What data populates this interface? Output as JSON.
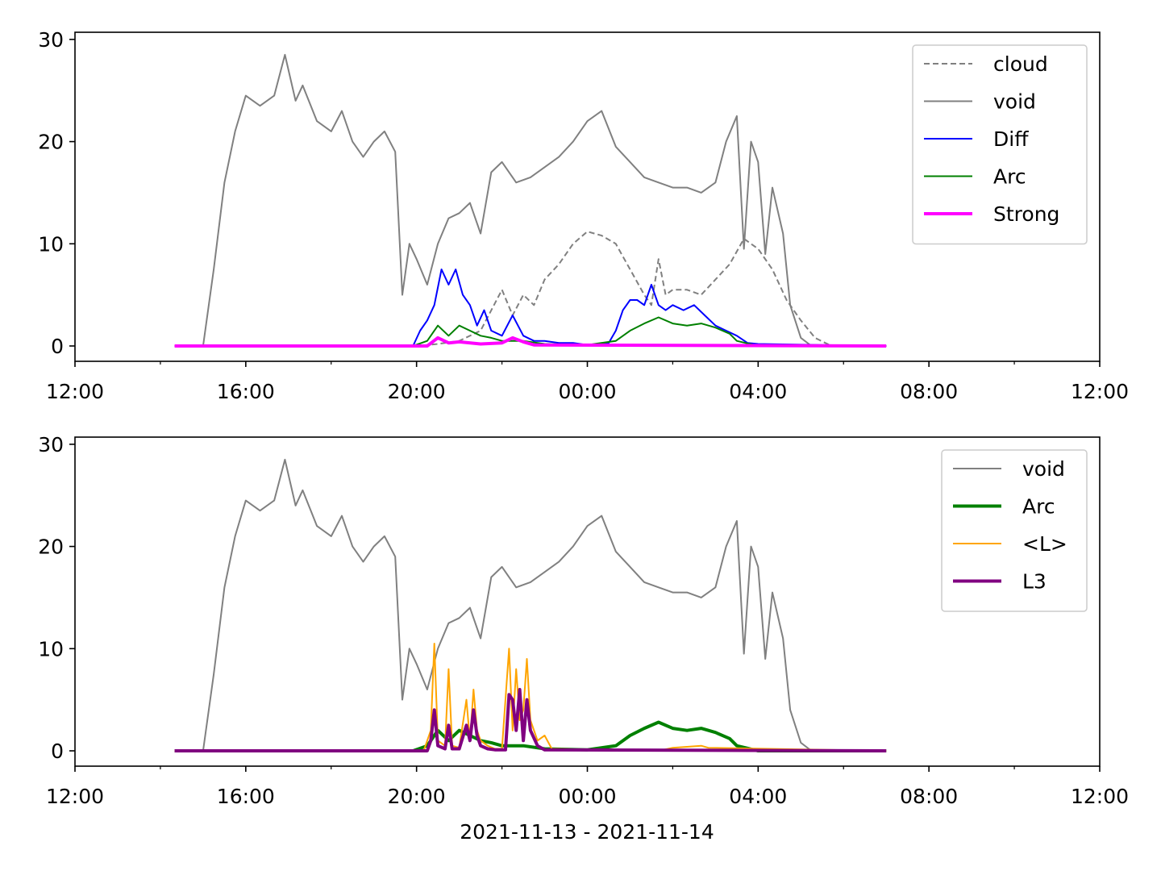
{
  "figure": {
    "xlabel": "2021-11-13 - 2021-11-14"
  },
  "chart_data": [
    {
      "type": "line",
      "ylim": [
        -1.5,
        30.7
      ],
      "xlim": [
        "2021-11-13 12:00",
        "2021-11-14 12:00"
      ],
      "yticks": [
        0,
        10,
        20,
        30
      ],
      "xticks": [
        "12:00",
        "16:00",
        "20:00",
        "00:00",
        "04:00",
        "08:00",
        "12:00"
      ],
      "legend_position": "top-right",
      "grid": false,
      "series": [
        {
          "name": "cloud",
          "color": "#808080",
          "style": "dashed",
          "x": [
            "2021-11-13 14:20",
            "2021-11-13 19:30",
            "2021-11-13 20:00",
            "2021-11-13 20:30",
            "2021-11-13 21:00",
            "2021-11-13 21:30",
            "2021-11-13 22:00",
            "2021-11-13 22:15",
            "2021-11-13 22:30",
            "2021-11-13 22:45",
            "2021-11-13 23:00",
            "2021-11-13 23:20",
            "2021-11-13 23:40",
            "2021-11-14 00:00",
            "2021-11-14 00:20",
            "2021-11-14 00:40",
            "2021-11-14 01:00",
            "2021-11-14 01:20",
            "2021-11-14 01:30",
            "2021-11-14 01:40",
            "2021-11-14 01:50",
            "2021-11-14 02:00",
            "2021-11-14 02:20",
            "2021-11-14 02:40",
            "2021-11-14 03:00",
            "2021-11-14 03:20",
            "2021-11-14 03:40",
            "2021-11-14 04:00",
            "2021-11-14 04:20",
            "2021-11-14 04:40",
            "2021-11-14 05:00",
            "2021-11-14 05:20",
            "2021-11-14 05:40",
            "2021-11-14 06:00",
            "2021-11-14 07:00"
          ],
          "values": [
            0,
            0,
            0,
            0.2,
            0.5,
            1.5,
            5.5,
            3.0,
            5.0,
            4.0,
            6.5,
            8.0,
            10.0,
            11.2,
            10.8,
            10.0,
            7.5,
            5.0,
            4.0,
            8.5,
            5.0,
            5.5,
            5.5,
            5.0,
            6.5,
            8.0,
            10.5,
            9.5,
            7.5,
            4.5,
            2.5,
            0.8,
            0.1,
            0,
            0
          ]
        },
        {
          "name": "void",
          "color": "#808080",
          "style": "solid",
          "x": [
            "2021-11-13 14:20",
            "2021-11-13 15:00",
            "2021-11-13 15:15",
            "2021-11-13 15:30",
            "2021-11-13 15:45",
            "2021-11-13 16:00",
            "2021-11-13 16:20",
            "2021-11-13 16:40",
            "2021-11-13 16:55",
            "2021-11-13 17:10",
            "2021-11-13 17:20",
            "2021-11-13 17:40",
            "2021-11-13 18:00",
            "2021-11-13 18:15",
            "2021-11-13 18:30",
            "2021-11-13 18:45",
            "2021-11-13 19:00",
            "2021-11-13 19:15",
            "2021-11-13 19:30",
            "2021-11-13 19:40",
            "2021-11-13 19:50",
            "2021-11-13 20:00",
            "2021-11-13 20:15",
            "2021-11-13 20:30",
            "2021-11-13 20:45",
            "2021-11-13 21:00",
            "2021-11-13 21:15",
            "2021-11-13 21:30",
            "2021-11-13 21:45",
            "2021-11-13 22:00",
            "2021-11-13 22:20",
            "2021-11-13 22:40",
            "2021-11-13 23:00",
            "2021-11-13 23:20",
            "2021-11-13 23:40",
            "2021-11-14 00:00",
            "2021-11-14 00:20",
            "2021-11-14 00:40",
            "2021-11-14 01:00",
            "2021-11-14 01:20",
            "2021-11-14 01:40",
            "2021-11-14 02:00",
            "2021-11-14 02:20",
            "2021-11-14 02:40",
            "2021-11-14 03:00",
            "2021-11-14 03:15",
            "2021-11-14 03:30",
            "2021-11-14 03:40",
            "2021-11-14 03:50",
            "2021-11-14 04:00",
            "2021-11-14 04:10",
            "2021-11-14 04:20",
            "2021-11-14 04:35",
            "2021-11-14 04:45",
            "2021-11-14 05:00",
            "2021-11-14 05:15",
            "2021-11-14 05:30",
            "2021-11-14 05:45",
            "2021-11-14 06:00",
            "2021-11-14 07:00"
          ],
          "values": [
            0,
            0,
            7.5,
            16,
            21,
            24.5,
            23.5,
            24.5,
            28.5,
            24,
            25.5,
            22,
            21,
            23,
            20,
            18.5,
            20,
            21,
            19,
            5,
            10,
            8.5,
            6,
            10,
            12.5,
            13,
            14,
            11,
            17,
            18,
            16,
            16.5,
            17.5,
            18.5,
            20,
            22,
            23,
            19.5,
            18,
            16.5,
            16,
            15.5,
            15.5,
            15,
            16,
            20,
            22.5,
            9.5,
            20,
            18,
            9,
            15.5,
            11,
            4,
            0.8,
            0,
            0,
            0,
            0,
            0
          ]
        },
        {
          "name": "Diff",
          "color": "#0000ff",
          "style": "solid",
          "x": [
            "2021-11-13 14:20",
            "2021-11-13 19:55",
            "2021-11-13 20:05",
            "2021-11-13 20:15",
            "2021-11-13 20:25",
            "2021-11-13 20:35",
            "2021-11-13 20:45",
            "2021-11-13 20:55",
            "2021-11-13 21:05",
            "2021-11-13 21:15",
            "2021-11-13 21:25",
            "2021-11-13 21:35",
            "2021-11-13 21:45",
            "2021-11-13 22:00",
            "2021-11-13 22:15",
            "2021-11-13 22:30",
            "2021-11-13 22:45",
            "2021-11-13 23:00",
            "2021-11-13 23:20",
            "2021-11-13 23:40",
            "2021-11-14 00:00",
            "2021-11-14 00:30",
            "2021-11-14 00:40",
            "2021-11-14 00:50",
            "2021-11-14 01:00",
            "2021-11-14 01:10",
            "2021-11-14 01:20",
            "2021-11-14 01:30",
            "2021-11-14 01:40",
            "2021-11-14 01:50",
            "2021-11-14 02:00",
            "2021-11-14 02:15",
            "2021-11-14 02:30",
            "2021-11-14 02:45",
            "2021-11-14 03:00",
            "2021-11-14 03:15",
            "2021-11-14 03:30",
            "2021-11-14 03:45",
            "2021-11-14 04:00",
            "2021-11-14 07:00"
          ],
          "values": [
            0,
            0,
            1.5,
            2.5,
            4,
            7.5,
            6,
            7.5,
            5,
            4,
            2,
            3.5,
            1.5,
            1,
            3,
            1,
            0.5,
            0.5,
            0.3,
            0.3,
            0.1,
            0.3,
            1.5,
            3.5,
            4.5,
            4.5,
            4,
            6,
            4,
            3.5,
            4,
            3.5,
            4,
            3,
            2,
            1.5,
            1,
            0.3,
            0.2,
            0
          ]
        },
        {
          "name": "Arc",
          "color": "#008000",
          "style": "solid",
          "x": [
            "2021-11-13 14:20",
            "2021-11-13 19:55",
            "2021-11-13 20:15",
            "2021-11-13 20:30",
            "2021-11-13 20:45",
            "2021-11-13 21:00",
            "2021-11-13 21:15",
            "2021-11-13 21:30",
            "2021-11-13 21:45",
            "2021-11-13 22:00",
            "2021-11-13 22:30",
            "2021-11-13 23:00",
            "2021-11-14 00:00",
            "2021-11-14 00:40",
            "2021-11-14 01:00",
            "2021-11-14 01:20",
            "2021-11-14 01:40",
            "2021-11-14 02:00",
            "2021-11-14 02:20",
            "2021-11-14 02:40",
            "2021-11-14 03:00",
            "2021-11-14 03:20",
            "2021-11-14 03:30",
            "2021-11-14 04:00",
            "2021-11-14 07:00"
          ],
          "values": [
            0,
            0,
            0.5,
            2,
            1,
            2,
            1.5,
            1,
            0.8,
            0.5,
            0.5,
            0.2,
            0.1,
            0.5,
            1.5,
            2.2,
            2.8,
            2.2,
            2,
            2.2,
            1.8,
            1.2,
            0.5,
            0,
            0
          ]
        },
        {
          "name": "Strong",
          "color": "#ff00ff",
          "style": "solid",
          "width": "thick",
          "x": [
            "2021-11-13 14:20",
            "2021-11-13 20:15",
            "2021-11-13 20:30",
            "2021-11-13 20:45",
            "2021-11-13 21:00",
            "2021-11-13 21:30",
            "2021-11-13 22:00",
            "2021-11-13 22:15",
            "2021-11-13 22:30",
            "2021-11-13 22:45",
            "2021-11-14 07:00"
          ],
          "values": [
            0,
            0,
            0.8,
            0.3,
            0.4,
            0.2,
            0.3,
            0.8,
            0.4,
            0.1,
            0
          ]
        }
      ]
    },
    {
      "type": "line",
      "ylim": [
        -1.5,
        30.7
      ],
      "xlim": [
        "2021-11-13 12:00",
        "2021-11-14 12:00"
      ],
      "yticks": [
        0,
        10,
        20,
        30
      ],
      "xticks": [
        "12:00",
        "16:00",
        "20:00",
        "00:00",
        "04:00",
        "08:00",
        "12:00"
      ],
      "xlabel": "2021-11-13 - 2021-11-14",
      "legend_position": "top-right",
      "grid": false,
      "series": [
        {
          "name": "void",
          "color": "#808080",
          "style": "solid",
          "x": [
            "2021-11-13 14:20",
            "2021-11-13 15:00",
            "2021-11-13 15:15",
            "2021-11-13 15:30",
            "2021-11-13 15:45",
            "2021-11-13 16:00",
            "2021-11-13 16:20",
            "2021-11-13 16:40",
            "2021-11-13 16:55",
            "2021-11-13 17:10",
            "2021-11-13 17:20",
            "2021-11-13 17:40",
            "2021-11-13 18:00",
            "2021-11-13 18:15",
            "2021-11-13 18:30",
            "2021-11-13 18:45",
            "2021-11-13 19:00",
            "2021-11-13 19:15",
            "2021-11-13 19:30",
            "2021-11-13 19:40",
            "2021-11-13 19:50",
            "2021-11-13 20:00",
            "2021-11-13 20:15",
            "2021-11-13 20:30",
            "2021-11-13 20:45",
            "2021-11-13 21:00",
            "2021-11-13 21:15",
            "2021-11-13 21:30",
            "2021-11-13 21:45",
            "2021-11-13 22:00",
            "2021-11-13 22:20",
            "2021-11-13 22:40",
            "2021-11-13 23:00",
            "2021-11-13 23:20",
            "2021-11-13 23:40",
            "2021-11-14 00:00",
            "2021-11-14 00:20",
            "2021-11-14 00:40",
            "2021-11-14 01:00",
            "2021-11-14 01:20",
            "2021-11-14 01:40",
            "2021-11-14 02:00",
            "2021-11-14 02:20",
            "2021-11-14 02:40",
            "2021-11-14 03:00",
            "2021-11-14 03:15",
            "2021-11-14 03:30",
            "2021-11-14 03:40",
            "2021-11-14 03:50",
            "2021-11-14 04:00",
            "2021-11-14 04:10",
            "2021-11-14 04:20",
            "2021-11-14 04:35",
            "2021-11-14 04:45",
            "2021-11-14 05:00",
            "2021-11-14 05:15",
            "2021-11-14 05:30",
            "2021-11-14 05:45",
            "2021-11-14 06:00",
            "2021-11-14 07:00"
          ],
          "values": [
            0,
            0,
            7.5,
            16,
            21,
            24.5,
            23.5,
            24.5,
            28.5,
            24,
            25.5,
            22,
            21,
            23,
            20,
            18.5,
            20,
            21,
            19,
            5,
            10,
            8.5,
            6,
            10,
            12.5,
            13,
            14,
            11,
            17,
            18,
            16,
            16.5,
            17.5,
            18.5,
            20,
            22,
            23,
            19.5,
            18,
            16.5,
            16,
            15.5,
            15.5,
            15,
            16,
            20,
            22.5,
            9.5,
            20,
            18,
            9,
            15.5,
            11,
            4,
            0.8,
            0,
            0,
            0,
            0,
            0
          ]
        },
        {
          "name": "Arc",
          "color": "#008000",
          "style": "solid",
          "width": "thick",
          "x": [
            "2021-11-13 14:20",
            "2021-11-13 19:55",
            "2021-11-13 20:15",
            "2021-11-13 20:30",
            "2021-11-13 20:45",
            "2021-11-13 21:00",
            "2021-11-13 21:15",
            "2021-11-13 21:30",
            "2021-11-13 21:45",
            "2021-11-13 22:00",
            "2021-11-13 22:30",
            "2021-11-13 23:00",
            "2021-11-14 00:00",
            "2021-11-14 00:40",
            "2021-11-14 01:00",
            "2021-11-14 01:20",
            "2021-11-14 01:40",
            "2021-11-14 02:00",
            "2021-11-14 02:20",
            "2021-11-14 02:40",
            "2021-11-14 03:00",
            "2021-11-14 03:20",
            "2021-11-14 03:30",
            "2021-11-14 04:00",
            "2021-11-14 07:00"
          ],
          "values": [
            0,
            0,
            0.5,
            2,
            1,
            2,
            1.5,
            1,
            0.8,
            0.5,
            0.5,
            0.2,
            0.1,
            0.5,
            1.5,
            2.2,
            2.8,
            2.2,
            2,
            2.2,
            1.8,
            1.2,
            0.5,
            0,
            0
          ]
        },
        {
          "name": "<L>",
          "color": "#ffa500",
          "style": "solid",
          "x": [
            "2021-11-13 14:20",
            "2021-11-13 20:10",
            "2021-11-13 20:20",
            "2021-11-13 20:25",
            "2021-11-13 20:30",
            "2021-11-13 20:40",
            "2021-11-13 20:45",
            "2021-11-13 20:50",
            "2021-11-13 21:00",
            "2021-11-13 21:10",
            "2021-11-13 21:15",
            "2021-11-13 21:20",
            "2021-11-13 21:25",
            "2021-11-13 21:30",
            "2021-11-13 21:40",
            "2021-11-13 21:50",
            "2021-11-13 22:00",
            "2021-11-13 22:10",
            "2021-11-13 22:15",
            "2021-11-13 22:20",
            "2021-11-13 22:25",
            "2021-11-13 22:30",
            "2021-11-13 22:35",
            "2021-11-13 22:40",
            "2021-11-13 22:50",
            "2021-11-13 23:00",
            "2021-11-13 23:10",
            "2021-11-14 01:40",
            "2021-11-14 02:00",
            "2021-11-14 02:40",
            "2021-11-14 02:50",
            "2021-11-14 07:00"
          ],
          "values": [
            0,
            0,
            2,
            10.5,
            1,
            0.5,
            8,
            0.5,
            0.3,
            5,
            1,
            6,
            2,
            1,
            0.5,
            0.2,
            0.2,
            10,
            2,
            8,
            3,
            4,
            9,
            3,
            1,
            1.5,
            0.2,
            0,
            0.3,
            0.5,
            0.3,
            0
          ]
        },
        {
          "name": "L3",
          "color": "#800080",
          "style": "solid",
          "width": "thick",
          "x": [
            "2021-11-13 14:20",
            "2021-11-13 20:15",
            "2021-11-13 20:20",
            "2021-11-13 20:25",
            "2021-11-13 20:30",
            "2021-11-13 20:40",
            "2021-11-13 20:45",
            "2021-11-13 20:50",
            "2021-11-13 21:00",
            "2021-11-13 21:10",
            "2021-11-13 21:15",
            "2021-11-13 21:20",
            "2021-11-13 21:25",
            "2021-11-13 21:30",
            "2021-11-13 21:40",
            "2021-11-13 21:50",
            "2021-11-13 22:05",
            "2021-11-13 22:10",
            "2021-11-13 22:15",
            "2021-11-13 22:20",
            "2021-11-13 22:25",
            "2021-11-13 22:30",
            "2021-11-13 22:35",
            "2021-11-13 22:40",
            "2021-11-13 22:50",
            "2021-11-13 23:00",
            "2021-11-14 07:00"
          ],
          "values": [
            0,
            0,
            1,
            4,
            0.5,
            0.2,
            2.5,
            0.2,
            0.2,
            2.5,
            1,
            4,
            1.5,
            0.5,
            0.2,
            0.1,
            0.1,
            5.5,
            5,
            2,
            6,
            1,
            5,
            2,
            0.5,
            0.1,
            0
          ]
        }
      ]
    }
  ]
}
